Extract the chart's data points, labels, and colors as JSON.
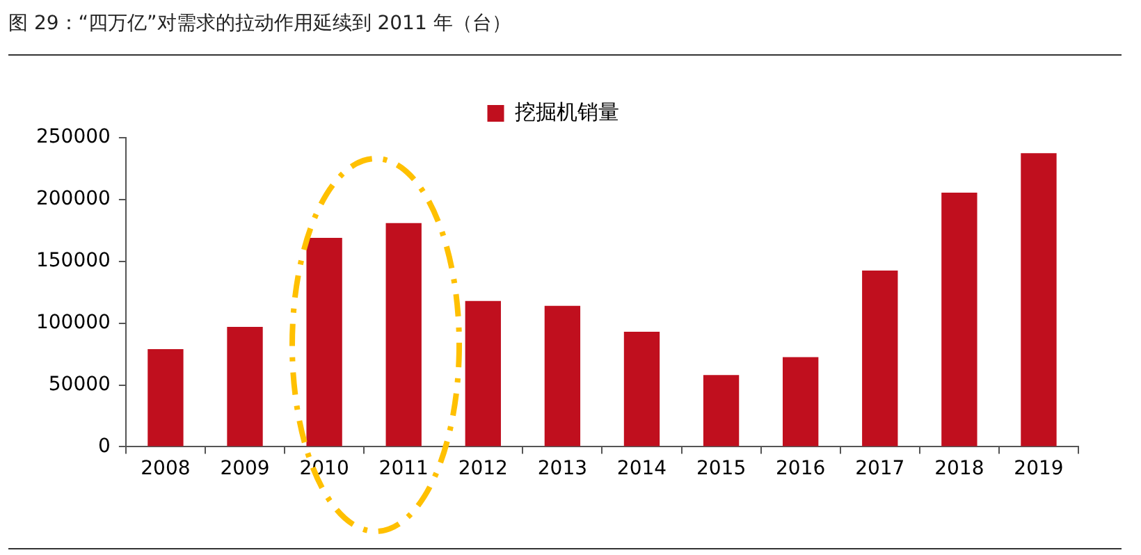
{
  "chart_data": {
    "type": "bar",
    "title": "图 29：“四万亿”对需求的拉动作用延续到 2011 年（台）",
    "categories": [
      "2008",
      "2009",
      "2010",
      "2011",
      "2012",
      "2013",
      "2014",
      "2015",
      "2016",
      "2017",
      "2018",
      "2019"
    ],
    "series": [
      {
        "name": "挖掘机销量",
        "color": "#c00f1e",
        "values": [
          79000,
          97000,
          169000,
          181000,
          118000,
          114000,
          93000,
          58000,
          72500,
          142500,
          205500,
          237500
        ]
      }
    ],
    "ylim": [
      0,
      250000
    ],
    "yticks": [
      0,
      50000,
      100000,
      150000,
      200000,
      250000
    ],
    "grid": false,
    "legend": "top"
  }
}
